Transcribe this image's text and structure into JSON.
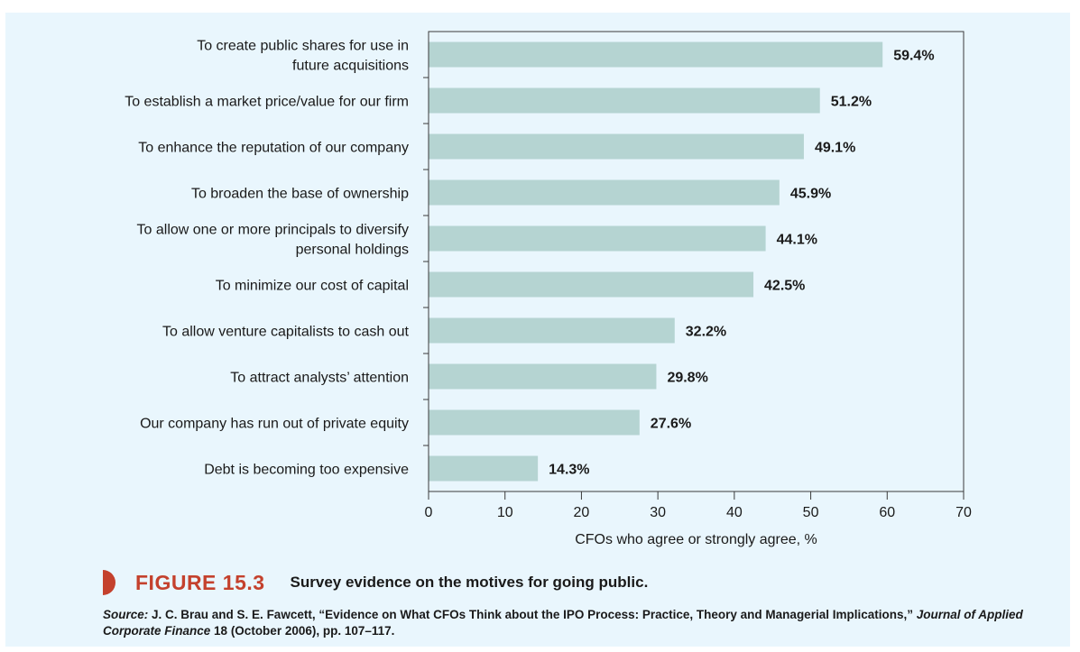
{
  "chart_data": {
    "type": "bar",
    "orientation": "horizontal",
    "categories": [
      [
        "To create public shares for use in",
        "future acquisitions"
      ],
      [
        "To establish a market price/value for our firm"
      ],
      [
        "To enhance the reputation of our company"
      ],
      [
        "To broaden the base of ownership"
      ],
      [
        "To allow one or more principals to diversify",
        "personal holdings"
      ],
      [
        "To minimize our cost of capital"
      ],
      [
        "To allow venture capitalists to cash out"
      ],
      [
        "To attract analysts’ attention"
      ],
      [
        "Our company has run out of private equity"
      ],
      [
        "Debt is becoming too expensive"
      ]
    ],
    "values": [
      59.4,
      51.2,
      49.1,
      45.9,
      44.1,
      42.5,
      32.2,
      29.8,
      27.6,
      14.3
    ],
    "value_labels": [
      "59.4%",
      "51.2%",
      "49.1%",
      "45.9%",
      "44.1%",
      "42.5%",
      "32.2%",
      "29.8%",
      "27.6%",
      "14.3%"
    ],
    "xlabel": "CFOs who agree or strongly agree, %",
    "xlim": [
      0,
      70
    ],
    "xticks": [
      0,
      10,
      20,
      30,
      40,
      50,
      60,
      70
    ],
    "grid": false,
    "bar_color": "#b5d4d2"
  },
  "figure": {
    "number": "FIGURE 15.3",
    "title": "Survey evidence on the motives for going public.",
    "accent_color": "#c4412d"
  },
  "source": {
    "label": "Source:",
    "text_before": "J. C. Brau and S. E. Fawcett, “Evidence on What CFOs Think about the IPO Process: Practice, Theory and Managerial Implications,”",
    "journal": "Journal of Applied Corporate Finance",
    "text_after": "18 (October 2006), pp. 107–117."
  }
}
